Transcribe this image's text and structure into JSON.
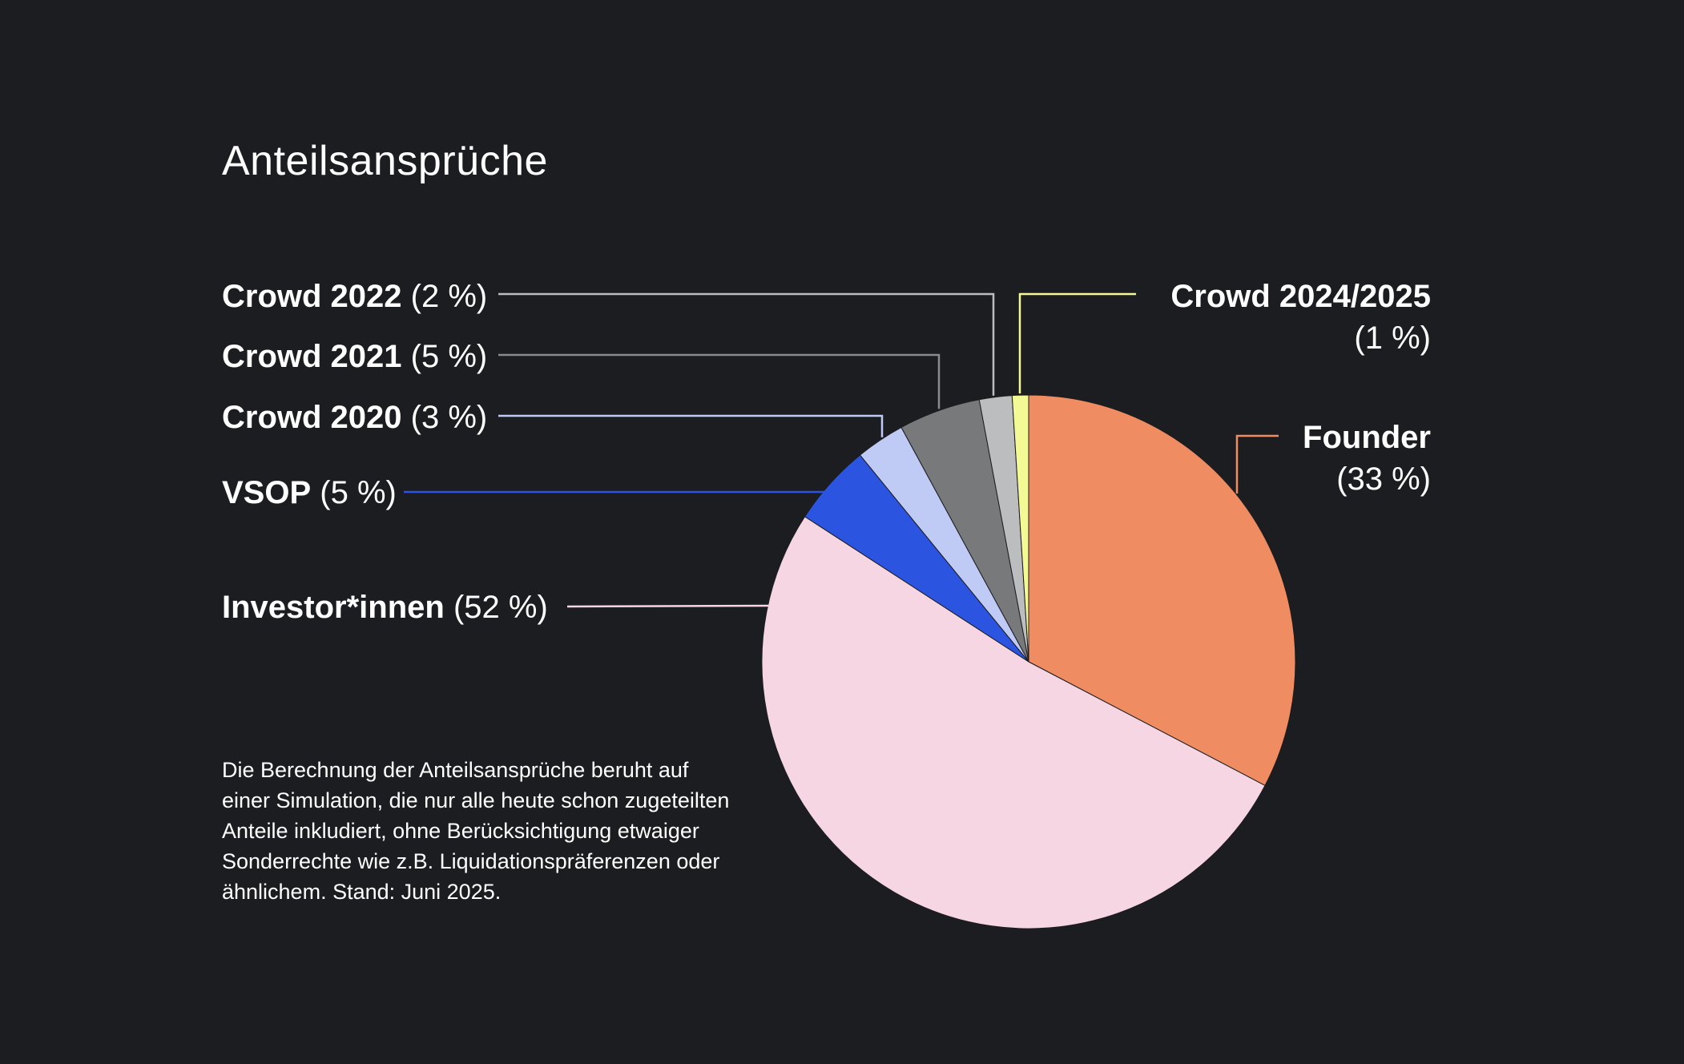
{
  "title": "Anteilsansprüche",
  "footnote": "Die Berechnung der Anteilsansprüche beruht auf einer Simulation, die nur alle heute schon zugeteilten Anteile inkludiert, ohne Berücksichtigung etwaiger Sonderrechte wie z.B. Liquidationspräferenzen oder ähnlichem. Stand: Juni 2025.",
  "chart_data": {
    "type": "pie",
    "title": "Anteilsansprüche",
    "slices": [
      {
        "key": "founder",
        "name": "Founder",
        "value": 33,
        "label": "(33 %)",
        "color": "#f08c62",
        "leader_color": "#f08c62"
      },
      {
        "key": "investor",
        "name": "Investor*innen",
        "value": 52,
        "label": "(52 %)",
        "color": "#f7d6e4",
        "leader_color": "#f7d6e4"
      },
      {
        "key": "vsop",
        "name": "VSOP",
        "value": 5,
        "label": "(5 %)",
        "color": "#2b55e0",
        "leader_color": "#2b55e0"
      },
      {
        "key": "crowd2020",
        "name": "Crowd 2020",
        "value": 3,
        "label": "(3 %)",
        "color": "#bfcaf5",
        "leader_color": "#bfcaf5"
      },
      {
        "key": "crowd2021",
        "name": "Crowd 2021",
        "value": 5,
        "label": "(5 %)",
        "color": "#78797b",
        "leader_color": "#8a8b8d"
      },
      {
        "key": "crowd2022",
        "name": "Crowd 2022",
        "value": 2,
        "label": "(2 %)",
        "color": "#bcbdbf",
        "leader_color": "#bcbdbf"
      },
      {
        "key": "crowd2425",
        "name": "Crowd 2024/2025",
        "value": 1,
        "label": "(1 %)",
        "color": "#f2f995",
        "leader_color": "#f2f995"
      }
    ]
  }
}
